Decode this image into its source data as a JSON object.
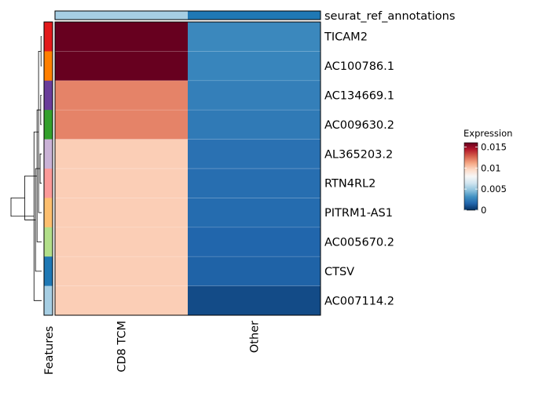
{
  "chart_data": {
    "type": "heatmap",
    "rows": [
      "TICAM2",
      "AC100786.1",
      "AC134669.1",
      "AC009630.2",
      "AL365203.2",
      "RTN4RL2",
      "PITRM1-AS1",
      "AC005670.2",
      "CTSV",
      "AC007114.2"
    ],
    "columns": [
      "CD8 TCM",
      "Other"
    ],
    "values": [
      [
        0.016,
        0.0028
      ],
      [
        0.016,
        0.0027
      ],
      [
        0.012,
        0.0025
      ],
      [
        0.012,
        0.0023
      ],
      [
        0.01,
        0.002
      ],
      [
        0.01,
        0.0019
      ],
      [
        0.01,
        0.0018
      ],
      [
        0.01,
        0.0016
      ],
      [
        0.01,
        0.0015
      ],
      [
        0.01,
        0.0008
      ]
    ],
    "column_annotation": {
      "name": "seurat_ref_annotations",
      "colors": [
        "#a6cee3",
        "#1f78b4"
      ]
    },
    "row_annotation": {
      "name": "Features",
      "colors": [
        "#e31a1c",
        "#ff7f00",
        "#6a3d9a",
        "#33a02c",
        "#cab2d6",
        "#fb9a99",
        "#fdbf6f",
        "#b2df8a",
        "#1f78b4",
        "#a6cee3"
      ]
    },
    "dendrogram": {
      "merges": [
        [
          1,
          2
        ],
        [
          3,
          4
        ],
        [
          5,
          6
        ],
        [
          11,
          7
        ],
        [
          12,
          8
        ],
        [
          13,
          9
        ],
        [
          14,
          10
        ],
        [
          15,
          16
        ],
        [
          17,
          18
        ]
      ],
      "heights": [
        0.02,
        0.03,
        0.05,
        0.1,
        0.15,
        0.2,
        0.25,
        0.55,
        1.0
      ]
    },
    "legend": {
      "title": "Expression",
      "ticks": [
        0,
        0.005,
        0.01,
        0.015
      ],
      "tick_labels": [
        "0",
        "0.005",
        "0.01",
        "0.015"
      ],
      "range": [
        0,
        0.016
      ]
    },
    "colorscale": [
      "#053061",
      "#2166ac",
      "#4393c3",
      "#92c5de",
      "#d1e5f0",
      "#f7f7f7",
      "#fddbc7",
      "#f4a582",
      "#d6604d",
      "#b2182b",
      "#67001f"
    ]
  }
}
